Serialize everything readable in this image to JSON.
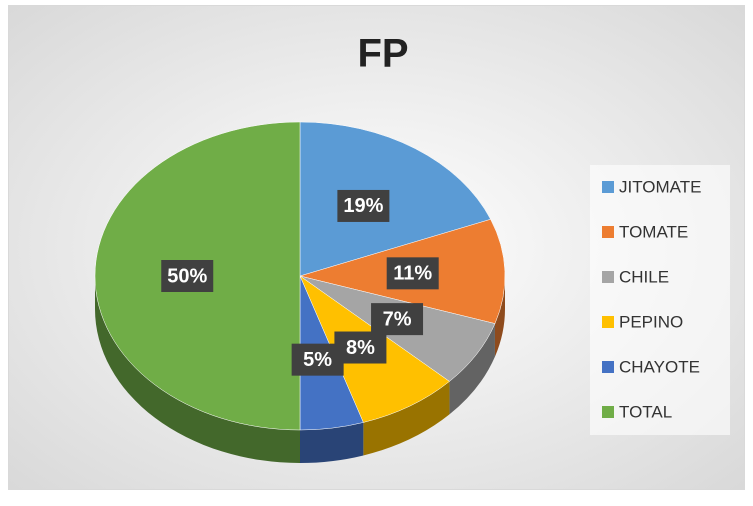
{
  "chart_data": {
    "type": "pie",
    "title": "FP",
    "categories": [
      "JITOMATE",
      "TOMATE",
      "CHILE",
      "PEPINO",
      "CHAYOTE",
      "TOTAL"
    ],
    "values": [
      19,
      11,
      7,
      8,
      5,
      50
    ],
    "value_labels": [
      "19%",
      "11%",
      "7%",
      "8%",
      "5%",
      "50%"
    ],
    "colors": [
      "#5b9bd5",
      "#ed7d31",
      "#a5a5a5",
      "#ffc000",
      "#4472c4",
      "#70ad47"
    ],
    "legend": "right"
  }
}
